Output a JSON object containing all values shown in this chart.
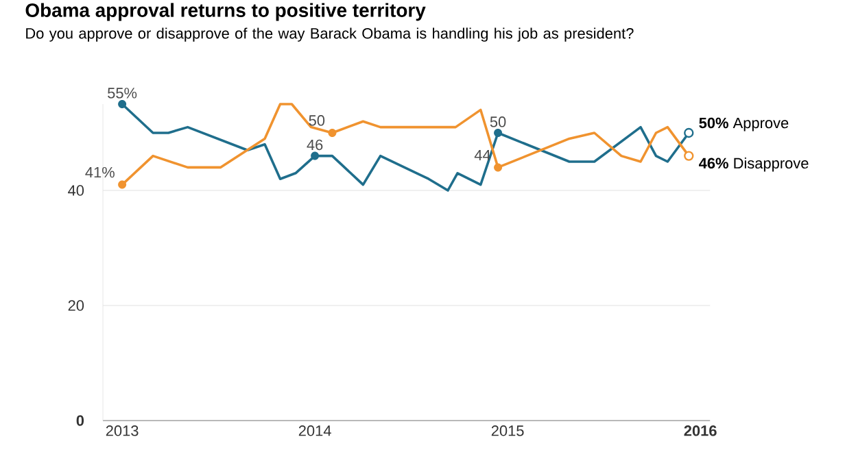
{
  "chart_data": {
    "type": "line",
    "title": "Obama approval returns to positive territory",
    "subtitle": "Do you approve or disapprove of the way Barack Obama is handling his job as president?",
    "xlim": [
      2012.9,
      2016.05
    ],
    "xticks": [
      2013,
      2014,
      2015,
      2016
    ],
    "ylim": [
      0,
      55
    ],
    "yticks": [
      0,
      20,
      40
    ],
    "grid": "y",
    "series": [
      {
        "name": "Approve",
        "color": "#1f6e8c",
        "x": [
          2013.0,
          2013.16,
          2013.24,
          2013.34,
          2013.65,
          2013.74,
          2013.82,
          2013.9,
          2014.0,
          2014.09,
          2014.25,
          2014.34,
          2014.59,
          2014.69,
          2014.74,
          2014.86,
          2014.95,
          2015.32,
          2015.45,
          2015.69,
          2015.77,
          2015.83,
          2015.94
        ],
        "values": [
          55,
          50,
          50,
          51,
          47,
          48,
          42,
          43,
          46,
          46,
          41,
          46,
          42,
          40,
          43,
          41,
          50,
          45,
          45,
          51,
          46,
          45,
          50
        ],
        "value_labels": [
          "55%",
          null,
          null,
          null,
          null,
          null,
          null,
          null,
          "46",
          null,
          null,
          null,
          null,
          null,
          null,
          null,
          "50",
          null,
          null,
          null,
          null,
          null,
          "50%"
        ]
      },
      {
        "name": "Disapprove",
        "color": "#f0932f",
        "x": [
          2013.0,
          2013.16,
          2013.34,
          2013.51,
          2013.74,
          2013.82,
          2013.88,
          2013.98,
          2014.09,
          2014.25,
          2014.34,
          2014.73,
          2014.86,
          2014.95,
          2015.32,
          2015.45,
          2015.59,
          2015.69,
          2015.77,
          2015.83,
          2015.94
        ],
        "values": [
          41,
          46,
          44,
          44,
          49,
          55,
          55,
          51,
          50,
          52,
          51,
          51,
          54,
          44,
          49,
          50,
          46,
          45,
          50,
          51,
          46
        ],
        "value_labels": [
          "41%",
          null,
          null,
          null,
          null,
          null,
          null,
          null,
          "50",
          null,
          null,
          null,
          null,
          "44",
          null,
          null,
          null,
          null,
          null,
          null,
          "46%"
        ]
      }
    ]
  }
}
